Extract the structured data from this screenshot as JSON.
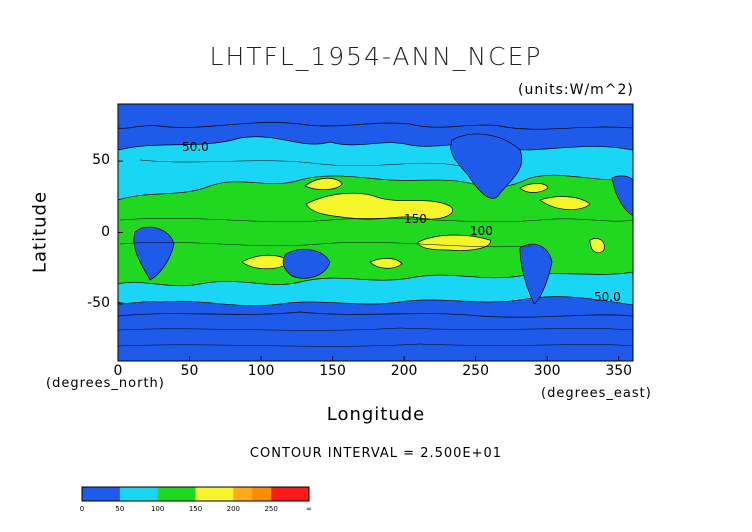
{
  "chart_data": {
    "type": "heatmap",
    "title": "LHTFL_1954-ANN_NCEP",
    "units": "(units:W/m^2)",
    "xlabel": "Longitude",
    "ylabel": "Latitude",
    "x_note": "(degrees_east)",
    "y_note": "(degrees_north)",
    "xlim": [
      0,
      360
    ],
    "ylim": [
      -90,
      90
    ],
    "x_ticks": [
      0,
      50,
      100,
      150,
      200,
      250,
      300,
      350
    ],
    "y_ticks": [
      50,
      0,
      -50
    ],
    "contour_interval": "CONTOUR INTERVAL = 2.500E+01",
    "contour_labels": [
      "50.0",
      "150",
      "100",
      "50.0"
    ],
    "colorbar": {
      "bounds": [
        "0",
        "50",
        "100",
        "150",
        "200",
        "250",
        "∞"
      ],
      "colors": [
        "#1f5bea",
        "#1f5bea",
        "#18d6f4",
        "#18d6f4",
        "#1fd81f",
        "#1fd81f",
        "#f5f52a",
        "#f5f52a",
        "#ffaa1a",
        "#ff8c00",
        "#ff1a1a",
        "#ff1a1a"
      ]
    },
    "field_colors": {
      "0-50": "#1f5bea",
      "50-100": "#18d6f4",
      "100-150": "#1fd81f",
      "150-200": "#f5f52a"
    }
  }
}
